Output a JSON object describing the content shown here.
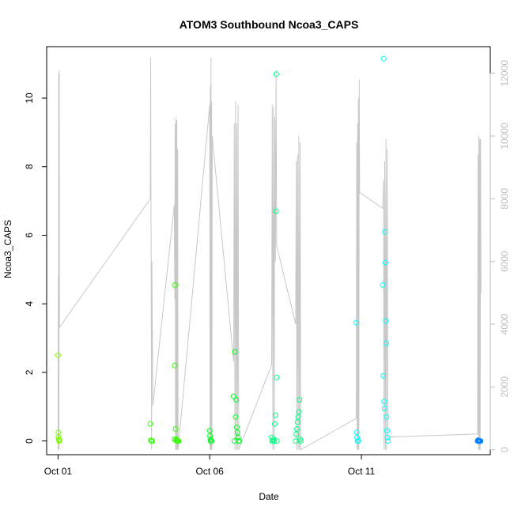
{
  "chart_data": {
    "type": "scatter",
    "title": "ATOM3 Southbound Ncoa3_CAPS",
    "xlabel": "Date",
    "ylabel": "Ncoa3_CAPS",
    "x_ticks": [
      {
        "date": "2019-10-01",
        "label": "Oct 01"
      },
      {
        "date": "2019-10-06",
        "label": "Oct 06"
      },
      {
        "date": "2019-10-11",
        "label": "Oct 11"
      }
    ],
    "xlim": [
      "2019-09-30T15:00",
      "2019-10-15T06:00"
    ],
    "ylim": [
      -0.4,
      11.5
    ],
    "y_ticks": [
      0,
      2,
      4,
      6,
      8,
      10
    ],
    "y2_ticks": [
      0,
      2000,
      4000,
      6000,
      8000,
      10000,
      12000
    ],
    "y2lim": [
      -160,
      12850
    ],
    "grid": false,
    "point_style": "open-circle",
    "secondary_series": {
      "axis": "right",
      "color": "#c8c8c8",
      "note": "grey depth trace",
      "points": [
        [
          "2019-10-01T00:00",
          0
        ],
        [
          "2019-10-01T00:10",
          5500
        ],
        [
          "2019-10-01T00:20",
          0
        ],
        [
          "2019-10-01T00:30",
          12000
        ],
        [
          "2019-10-01T00:40",
          0
        ],
        [
          "2019-10-01T01:00",
          12100
        ],
        [
          "2019-10-01T01:10",
          3900
        ],
        [
          "2019-10-04T01:00",
          8000
        ],
        [
          "2019-10-04T01:15",
          12500
        ],
        [
          "2019-10-04T02:00",
          0
        ],
        [
          "2019-10-04T02:15",
          6000
        ],
        [
          "2019-10-04T03:00",
          1400
        ],
        [
          "2019-10-04T20:00",
          7800
        ],
        [
          "2019-10-04T20:20",
          4800
        ],
        [
          "2019-10-04T20:40",
          10400
        ],
        [
          "2019-10-04T21:00",
          0
        ],
        [
          "2019-10-04T21:20",
          10600
        ],
        [
          "2019-10-04T21:40",
          0
        ],
        [
          "2019-10-04T22:00",
          10500
        ],
        [
          "2019-10-04T22:20",
          0
        ],
        [
          "2019-10-04T22:40",
          9600
        ],
        [
          "2019-10-04T23:00",
          0
        ],
        [
          "2019-10-06T00:00",
          11000
        ],
        [
          "2019-10-06T00:15",
          0
        ],
        [
          "2019-10-06T00:30",
          11600
        ],
        [
          "2019-10-06T00:45",
          0
        ],
        [
          "2019-10-06T01:00",
          12500
        ],
        [
          "2019-10-06T01:15",
          0
        ],
        [
          "2019-10-06T01:30",
          11100
        ],
        [
          "2019-10-06T01:45",
          0
        ],
        [
          "2019-10-06T02:00",
          10000
        ],
        [
          "2019-10-06T19:00",
          2800
        ],
        [
          "2019-10-06T19:30",
          10400
        ],
        [
          "2019-10-06T20:00",
          0
        ],
        [
          "2019-10-06T20:30",
          11100
        ],
        [
          "2019-10-06T21:00",
          0
        ],
        [
          "2019-10-06T21:30",
          10400
        ],
        [
          "2019-10-06T22:00",
          0
        ],
        [
          "2019-10-06T22:30",
          11000
        ],
        [
          "2019-10-06T23:00",
          0
        ],
        [
          "2019-10-08T01:00",
          2700
        ],
        [
          "2019-10-08T01:30",
          11000
        ],
        [
          "2019-10-08T02:00",
          0
        ],
        [
          "2019-10-08T02:30",
          10900
        ],
        [
          "2019-10-08T03:00",
          0
        ],
        [
          "2019-10-08T03:30",
          10600
        ],
        [
          "2019-10-08T04:00",
          6000
        ],
        [
          "2019-10-08T04:30",
          12100
        ],
        [
          "2019-10-08T05:00",
          6500
        ],
        [
          "2019-10-08T20:00",
          4000
        ],
        [
          "2019-10-08T20:30",
          9200
        ],
        [
          "2019-10-08T21:00",
          0
        ],
        [
          "2019-10-08T21:30",
          9400
        ],
        [
          "2019-10-08T22:00",
          0
        ],
        [
          "2019-10-08T22:30",
          10000
        ],
        [
          "2019-10-08T23:00",
          0
        ],
        [
          "2019-10-08T23:30",
          9800
        ],
        [
          "2019-10-09T00:00",
          0
        ],
        [
          "2019-10-10T20:00",
          1000
        ],
        [
          "2019-10-10T20:20",
          9800
        ],
        [
          "2019-10-10T20:40",
          0
        ],
        [
          "2019-10-10T21:00",
          10400
        ],
        [
          "2019-10-10T21:20",
          0
        ],
        [
          "2019-10-10T21:40",
          11200
        ],
        [
          "2019-10-10T22:00",
          0
        ],
        [
          "2019-10-10T22:20",
          11800
        ],
        [
          "2019-10-10T22:40",
          8200
        ],
        [
          "2019-10-11T17:00",
          7700
        ],
        [
          "2019-10-11T17:30",
          8600
        ],
        [
          "2019-10-11T18:00",
          0
        ],
        [
          "2019-10-11T18:30",
          9200
        ],
        [
          "2019-10-11T19:00",
          0
        ],
        [
          "2019-10-11T19:30",
          9900
        ],
        [
          "2019-10-11T20:00",
          0
        ],
        [
          "2019-10-11T20:30",
          9600
        ],
        [
          "2019-10-11T21:00",
          400
        ],
        [
          "2019-10-14T20:00",
          500
        ],
        [
          "2019-10-14T20:20",
          9400
        ],
        [
          "2019-10-14T20:40",
          0
        ],
        [
          "2019-10-14T21:00",
          10000
        ],
        [
          "2019-10-14T21:20",
          0
        ],
        [
          "2019-10-14T21:40",
          9900
        ],
        [
          "2019-10-14T22:00",
          0
        ],
        [
          "2019-10-14T22:20",
          9900
        ],
        [
          "2019-10-14T22:40",
          5000
        ]
      ]
    },
    "series": [
      {
        "color": "#7fff00",
        "points": [
          [
            "2019-10-01T00:00",
            2.5
          ],
          [
            "2019-10-01T00:10",
            0.25
          ],
          [
            "2019-10-01T00:20",
            0.12
          ],
          [
            "2019-10-01T00:30",
            0.05
          ],
          [
            "2019-10-01T00:40",
            0.02
          ],
          [
            "2019-10-01T00:50",
            0.0
          ],
          [
            "2019-10-01T01:00",
            0.0
          ],
          [
            "2019-10-01T01:10",
            0.03
          ]
        ]
      },
      {
        "color": "#33ff00",
        "points": [
          [
            "2019-10-04T01:00",
            0.5
          ],
          [
            "2019-10-04T01:20",
            0.02
          ],
          [
            "2019-10-04T02:00",
            0.0
          ],
          [
            "2019-10-04T02:40",
            0.0
          ],
          [
            "2019-10-04T20:00",
            0.05
          ],
          [
            "2019-10-04T20:20",
            2.2
          ],
          [
            "2019-10-04T20:40",
            4.55
          ],
          [
            "2019-10-04T21:00",
            0.35
          ],
          [
            "2019-10-04T21:20",
            0.05
          ],
          [
            "2019-10-04T21:40",
            0.02
          ],
          [
            "2019-10-04T22:00",
            0.0
          ],
          [
            "2019-10-04T22:20",
            0.0
          ],
          [
            "2019-10-04T22:40",
            0.0
          ],
          [
            "2019-10-04T23:00",
            0.0
          ],
          [
            "2019-10-04T23:20",
            0.0
          ]
        ]
      },
      {
        "color": "#00ff20",
        "points": [
          [
            "2019-10-06T00:00",
            0.3
          ],
          [
            "2019-10-06T00:15",
            0.15
          ],
          [
            "2019-10-06T00:30",
            0.05
          ],
          [
            "2019-10-06T00:45",
            0.0
          ],
          [
            "2019-10-06T01:00",
            0.0
          ],
          [
            "2019-10-06T01:30",
            0.0
          ],
          [
            "2019-10-06T19:00",
            1.3
          ],
          [
            "2019-10-06T19:30",
            0.0
          ],
          [
            "2019-10-06T20:00",
            2.6
          ],
          [
            "2019-10-06T20:30",
            0.7
          ],
          [
            "2019-10-06T21:00",
            1.2
          ],
          [
            "2019-10-06T21:30",
            0.4
          ],
          [
            "2019-10-06T22:00",
            0.25
          ],
          [
            "2019-10-06T22:30",
            0.1
          ],
          [
            "2019-10-06T23:00",
            0.0
          ],
          [
            "2019-10-06T23:30",
            0.0
          ]
        ]
      },
      {
        "color": "#00ff7f",
        "points": [
          [
            "2019-10-08T01:00",
            0.1
          ],
          [
            "2019-10-08T01:30",
            0.0
          ],
          [
            "2019-10-08T02:00",
            0.0
          ],
          [
            "2019-10-08T02:30",
            0.05
          ],
          [
            "2019-10-08T03:00",
            0.0
          ],
          [
            "2019-10-08T03:30",
            0.5
          ],
          [
            "2019-10-08T04:00",
            0.75
          ],
          [
            "2019-10-08T04:30",
            6.7
          ],
          [
            "2019-10-08T04:40",
            10.7
          ],
          [
            "2019-10-08T05:00",
            1.85
          ],
          [
            "2019-10-08T05:10",
            0.0
          ],
          [
            "2019-10-08T20:00",
            0.0
          ],
          [
            "2019-10-08T20:30",
            0.2
          ],
          [
            "2019-10-08T21:00",
            0.35
          ],
          [
            "2019-10-08T21:30",
            0.55
          ],
          [
            "2019-10-08T22:00",
            0.7
          ],
          [
            "2019-10-08T22:30",
            0.85
          ],
          [
            "2019-10-08T23:00",
            1.2
          ],
          [
            "2019-10-08T23:30",
            0.05
          ],
          [
            "2019-10-09T00:00",
            0.0
          ]
        ]
      },
      {
        "color": "#00ffff",
        "points": [
          [
            "2019-10-10T20:00",
            3.45
          ],
          [
            "2019-10-10T20:20",
            0.25
          ],
          [
            "2019-10-10T20:40",
            0.1
          ],
          [
            "2019-10-10T21:00",
            0.0
          ],
          [
            "2019-10-10T21:20",
            0.0
          ],
          [
            "2019-10-10T21:40",
            0.0
          ],
          [
            "2019-10-11T17:00",
            4.55
          ],
          [
            "2019-10-11T17:20",
            1.9
          ],
          [
            "2019-10-11T17:40",
            11.15
          ],
          [
            "2019-10-11T18:00",
            1.15
          ],
          [
            "2019-10-11T18:20",
            0.95
          ],
          [
            "2019-10-11T18:40",
            6.1
          ],
          [
            "2019-10-11T19:00",
            5.2
          ],
          [
            "2019-10-11T19:20",
            3.5
          ],
          [
            "2019-10-11T19:40",
            2.85
          ],
          [
            "2019-10-11T20:00",
            0.7
          ],
          [
            "2019-10-11T20:20",
            0.3
          ],
          [
            "2019-10-11T20:40",
            0.1
          ],
          [
            "2019-10-11T21:00",
            0.0
          ]
        ]
      },
      {
        "color": "#0080ff",
        "points": [
          [
            "2019-10-14T20:00",
            0.0
          ],
          [
            "2019-10-14T20:20",
            0.02
          ],
          [
            "2019-10-14T20:40",
            0.0
          ],
          [
            "2019-10-14T21:00",
            0.01
          ],
          [
            "2019-10-14T21:20",
            0.0
          ],
          [
            "2019-10-14T21:40",
            0.0
          ],
          [
            "2019-10-14T22:00",
            0.0
          ],
          [
            "2019-10-14T22:20",
            0.0
          ]
        ]
      }
    ]
  }
}
